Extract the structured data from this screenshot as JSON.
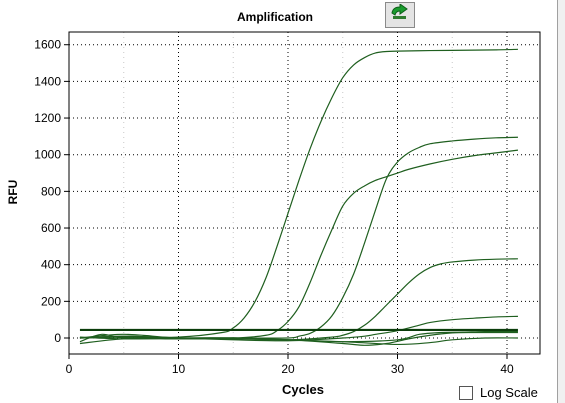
{
  "header": {
    "title": "Amplification",
    "icon": "chart-options-icon"
  },
  "log_scale": {
    "label": "Log Scale",
    "checked": false
  },
  "colors": {
    "curve": "#1f5f1f",
    "threshold": "#0b3d0b",
    "grid": "#000000",
    "icon_green": "#1a9c2e"
  },
  "chart_data": {
    "type": "line",
    "title": "Amplification",
    "xlabel": "Cycles",
    "ylabel": "RFU",
    "xlim": [
      0,
      43
    ],
    "ylim": [
      -50,
      1650
    ],
    "xticks": [
      0,
      10,
      20,
      30,
      40
    ],
    "yticks": [
      0,
      200,
      400,
      600,
      800,
      1000,
      1200,
      1400,
      1600
    ],
    "grid": true,
    "threshold": 44,
    "series": [
      {
        "x": [
          1,
          5,
          10,
          14,
          15,
          16,
          17,
          18,
          19,
          20,
          21,
          22,
          23,
          24,
          25,
          26,
          27,
          28,
          29,
          30,
          33,
          36,
          39,
          41
        ],
        "values": [
          0,
          5,
          5,
          30,
          55,
          110,
          200,
          330,
          500,
          680,
          860,
          1030,
          1180,
          1310,
          1420,
          1490,
          1530,
          1555,
          1563,
          1565,
          1568,
          1570,
          1572,
          1575
        ]
      },
      {
        "x": [
          1,
          5,
          10,
          15,
          18,
          19,
          20,
          21,
          22,
          23,
          24,
          25,
          26,
          27,
          28,
          29,
          30,
          31,
          33,
          35,
          37,
          39,
          41
        ],
        "values": [
          0,
          5,
          0,
          0,
          15,
          40,
          90,
          170,
          300,
          450,
          590,
          720,
          790,
          830,
          860,
          880,
          900,
          920,
          950,
          975,
          995,
          1010,
          1025
        ]
      },
      {
        "x": [
          1,
          5,
          10,
          15,
          20,
          21,
          22,
          23,
          24,
          25,
          26,
          27,
          28,
          29,
          30,
          31,
          32,
          33,
          35,
          37,
          39,
          41
        ],
        "values": [
          0,
          10,
          0,
          0,
          0,
          10,
          25,
          60,
          120,
          220,
          350,
          520,
          700,
          870,
          960,
          1010,
          1040,
          1060,
          1075,
          1085,
          1092,
          1095
        ]
      },
      {
        "x": [
          1,
          5,
          10,
          15,
          20,
          24,
          25,
          26,
          27,
          28,
          29,
          30,
          31,
          32,
          33,
          34,
          35,
          37,
          39,
          41
        ],
        "values": [
          0,
          20,
          0,
          0,
          -10,
          5,
          15,
          35,
          70,
          120,
          180,
          240,
          300,
          350,
          385,
          405,
          415,
          425,
          430,
          432
        ]
      },
      {
        "x": [
          1,
          5,
          10,
          15,
          20,
          25,
          27,
          28,
          30,
          32,
          33,
          35,
          37,
          39,
          41
        ],
        "values": [
          0,
          10,
          0,
          -10,
          -15,
          0,
          10,
          20,
          40,
          70,
          85,
          100,
          108,
          115,
          118
        ]
      },
      {
        "x": [
          1,
          3,
          5,
          10,
          15,
          20,
          25,
          30,
          32,
          34,
          36,
          38,
          41
        ],
        "values": [
          -20,
          20,
          0,
          0,
          0,
          -10,
          -20,
          -10,
          20,
          30,
          32,
          35,
          35
        ]
      },
      {
        "x": [
          1,
          5,
          10,
          15,
          20,
          25,
          27,
          29,
          31,
          33,
          35,
          37,
          39,
          41
        ],
        "values": [
          5,
          -5,
          0,
          0,
          -10,
          -30,
          -40,
          -30,
          -5,
          15,
          28,
          30,
          30,
          30
        ]
      },
      {
        "x": [
          1,
          5,
          10,
          15,
          20,
          25,
          30,
          33,
          35,
          38,
          41
        ],
        "values": [
          -30,
          -5,
          -5,
          -5,
          -10,
          -20,
          -35,
          -25,
          -10,
          0,
          0
        ]
      }
    ]
  }
}
